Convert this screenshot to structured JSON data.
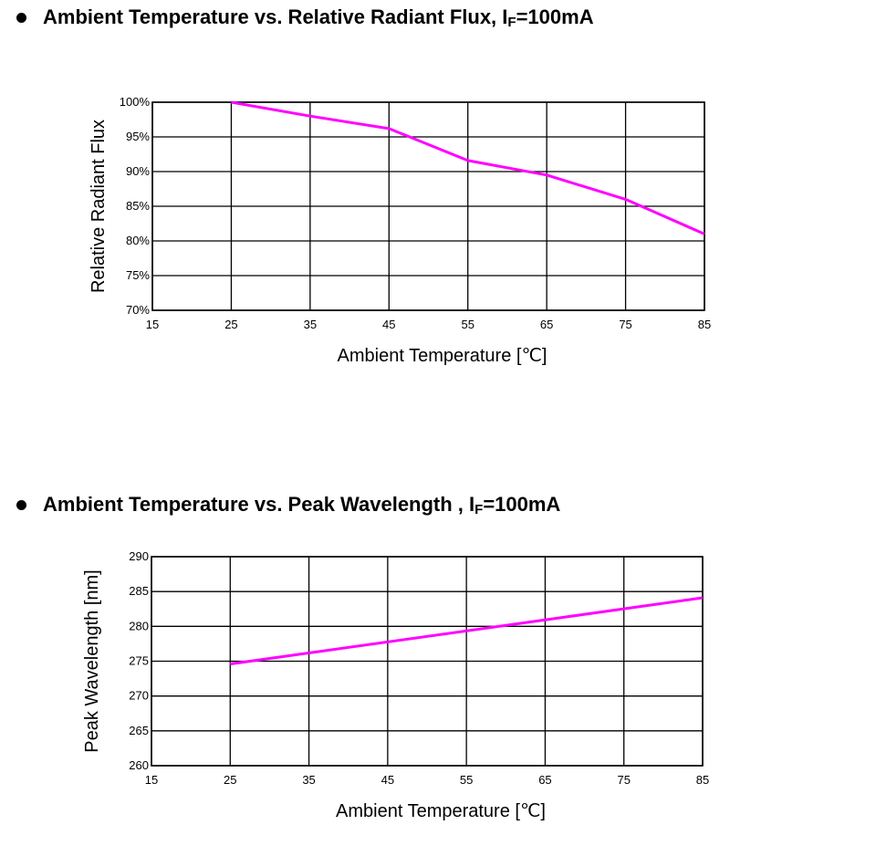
{
  "headings": [
    {
      "main": "Ambient Temperature vs. Relative Radiant Flux, I",
      "sub": "F",
      "suffix": "=100mA"
    },
    {
      "main": "Ambient Temperature vs. Peak Wavelength , I",
      "sub": "F",
      "suffix": "=100mA"
    }
  ],
  "chart_data": [
    {
      "type": "line",
      "title": "Ambient Temperature vs. Relative Radiant Flux, IF=100mA",
      "xlabel": "Ambient Temperature [℃]",
      "ylabel": "Relative Radiant Flux",
      "xlim": [
        15,
        85
      ],
      "ylim": [
        70,
        100
      ],
      "xticks": [
        "15",
        "25",
        "35",
        "45",
        "55",
        "65",
        "75",
        "85"
      ],
      "yticks": [
        "70%",
        "75%",
        "80%",
        "85%",
        "90%",
        "95%",
        "100%"
      ],
      "grid": true,
      "line_color": "#ff00ff",
      "series": [
        {
          "x": [
            25,
            35,
            45,
            55,
            65,
            75,
            85
          ],
          "y": [
            100,
            98,
            96.2,
            91.6,
            89.5,
            86,
            81
          ]
        }
      ]
    },
    {
      "type": "line",
      "title": "Ambient Temperature vs. Peak Wavelength , IF=100mA",
      "xlabel": "Ambient Temperature [℃]",
      "ylabel": "Peak Wavelength [nm]",
      "xlim": [
        15,
        85
      ],
      "ylim": [
        260,
        290
      ],
      "xticks": [
        "15",
        "25",
        "35",
        "45",
        "55",
        "65",
        "75",
        "85"
      ],
      "yticks": [
        "260",
        "265",
        "270",
        "275",
        "280",
        "285",
        "290"
      ],
      "grid": true,
      "line_color": "#ff00ff",
      "series": [
        {
          "x": [
            25,
            85
          ],
          "y": [
            274.6,
            284.1
          ]
        }
      ]
    }
  ]
}
